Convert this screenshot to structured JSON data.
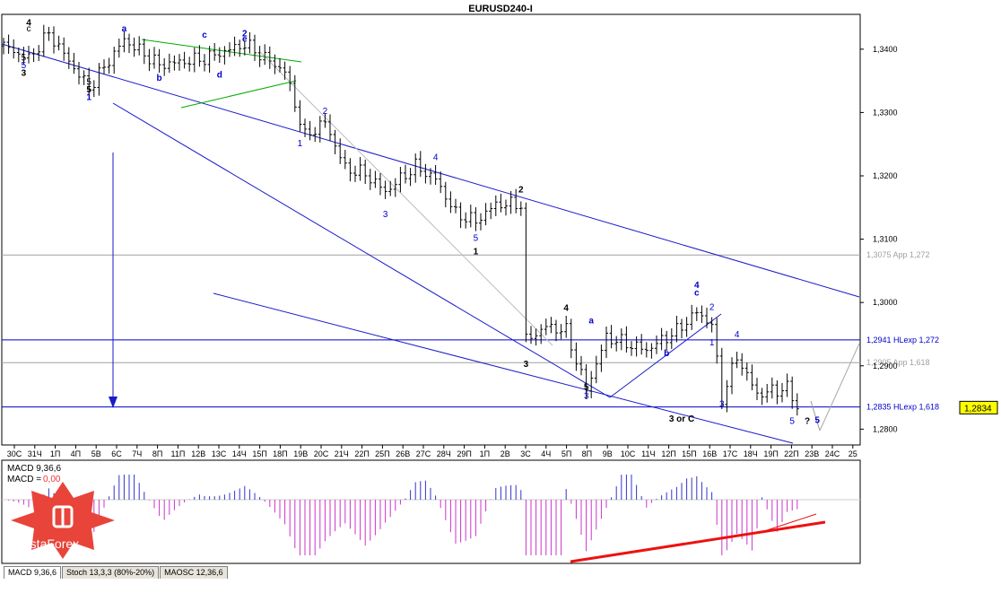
{
  "chart_data": {
    "type": "candlestick",
    "title": "EURUSD240-I",
    "price_axis": {
      "ylim": [
        1.2775,
        1.3455
      ],
      "tick_labels": [
        "1,3400",
        "1,3300",
        "1,3200",
        "1,3100",
        "1,3000",
        "1,2900",
        "1,2800"
      ],
      "tick_values": [
        1.34,
        1.33,
        1.32,
        1.31,
        1.3,
        1.29,
        1.28
      ],
      "current_price_label": "1,2834",
      "current_price": 1.2834
    },
    "time_axis": {
      "tick_labels": [
        "30С",
        "31Ч",
        "1П",
        "4П",
        "5В",
        "6С",
        "7Ч",
        "8П",
        "11П",
        "12В",
        "13С",
        "14Ч",
        "15П",
        "18П",
        "19В",
        "20С",
        "21Ч",
        "22П",
        "25П",
        "26В",
        "27С",
        "28Ч",
        "29П",
        "1П",
        "2В",
        "3С",
        "4Ч",
        "5П",
        "8П",
        "9В",
        "10С",
        "11Ч",
        "12П",
        "15П",
        "16В",
        "17С",
        "18Ч",
        "19П",
        "22П",
        "23В",
        "24С",
        "25"
      ]
    },
    "levels": [
      {
        "name": "app-1272",
        "label": "1,3075 App 1,272",
        "value": 1.3075,
        "color": "#a0a0a0"
      },
      {
        "name": "hlexp-1272",
        "label": "1,2941 HLexp 1,272",
        "value": 1.2941,
        "color": "#0000cc"
      },
      {
        "name": "app-1618",
        "label": "1,2905 App 1,618",
        "value": 1.2905,
        "color": "#a0a0a0"
      },
      {
        "name": "hlexp-1618",
        "label": "1,2835 HLexp 1,618",
        "value": 1.2835,
        "color": "#0000cc"
      }
    ],
    "wave_labels": [
      {
        "text": "4",
        "bar": 5,
        "price": 1.3437,
        "color": "#000",
        "bold": true
      },
      {
        "text": "c",
        "bar": 5,
        "price": 1.3428,
        "color": "#000"
      },
      {
        "text": "a",
        "bar": 24,
        "price": 1.3428,
        "color": "#0000cc",
        "bold": true
      },
      {
        "text": "c",
        "bar": 40,
        "price": 1.3418,
        "color": "#0000cc",
        "bold": true
      },
      {
        "text": "2",
        "bar": 48,
        "price": 1.342,
        "color": "#0000cc",
        "bold": true
      },
      {
        "text": "e",
        "bar": 48,
        "price": 1.3412,
        "color": "#0000cc",
        "bold": true
      },
      {
        "text": "5",
        "bar": 4,
        "price": 1.3382,
        "color": "#000"
      },
      {
        "text": "5",
        "bar": 4,
        "price": 1.337,
        "color": "#0000cc"
      },
      {
        "text": "3",
        "bar": 4,
        "price": 1.3358,
        "color": "#000",
        "bold": true
      },
      {
        "text": "5",
        "bar": 17,
        "price": 1.3344,
        "color": "#000"
      },
      {
        "text": "5",
        "bar": 17,
        "price": 1.3332,
        "color": "#000",
        "bold": true
      },
      {
        "text": "1",
        "bar": 17,
        "price": 1.332,
        "color": "#0000cc",
        "bold": true
      },
      {
        "text": "b",
        "bar": 31,
        "price": 1.335,
        "color": "#0000cc",
        "bold": true
      },
      {
        "text": "d",
        "bar": 43,
        "price": 1.3355,
        "color": "#0000cc",
        "bold": true
      },
      {
        "text": "2",
        "bar": 64,
        "price": 1.3298,
        "color": "#0000cc"
      },
      {
        "text": "1",
        "bar": 59,
        "price": 1.3247,
        "color": "#0000cc"
      },
      {
        "text": "4",
        "bar": 86,
        "price": 1.3225,
        "color": "#0000cc"
      },
      {
        "text": "3",
        "bar": 76,
        "price": 1.3135,
        "color": "#0000cc"
      },
      {
        "text": "5",
        "bar": 94,
        "price": 1.3097,
        "color": "#0000cc"
      },
      {
        "text": "1",
        "bar": 94,
        "price": 1.3076,
        "color": "#000",
        "bold": true
      },
      {
        "text": "2",
        "bar": 103,
        "price": 1.3174,
        "color": "#000",
        "bold": true
      },
      {
        "text": "3",
        "bar": 104,
        "price": 1.2898,
        "color": "#000",
        "bold": true
      },
      {
        "text": "4",
        "bar": 112,
        "price": 1.2987,
        "color": "#000",
        "bold": true
      },
      {
        "text": "5",
        "bar": 116,
        "price": 1.2862,
        "color": "#000",
        "bold": true
      },
      {
        "text": "3",
        "bar": 116,
        "price": 1.2848,
        "color": "#0000cc"
      },
      {
        "text": "a",
        "bar": 117,
        "price": 1.2967,
        "color": "#0000cc",
        "bold": true
      },
      {
        "text": "b",
        "bar": 132,
        "price": 1.2915,
        "color": "#0000cc",
        "bold": true
      },
      {
        "text": "4",
        "bar": 138,
        "price": 1.3023,
        "color": "#0000cc",
        "bold": true
      },
      {
        "text": "c",
        "bar": 138,
        "price": 1.3011,
        "color": "#0000cc",
        "bold": true
      },
      {
        "text": "2",
        "bar": 141,
        "price": 1.2988,
        "color": "#0000cc"
      },
      {
        "text": "1",
        "bar": 141,
        "price": 1.2932,
        "color": "#0000cc"
      },
      {
        "text": "4",
        "bar": 146,
        "price": 1.2945,
        "color": "#0000cc"
      },
      {
        "text": "3",
        "bar": 143,
        "price": 1.2835,
        "color": "#0000cc"
      },
      {
        "text": "3 or C",
        "bar": 135,
        "price": 1.2812,
        "color": "#000",
        "bold": true
      },
      {
        "text": "5",
        "bar": 157,
        "price": 1.2808,
        "color": "#0000cc"
      },
      {
        "text": "?",
        "bar": 160,
        "price": 1.2808,
        "color": "#000",
        "bold": true
      },
      {
        "text": "5",
        "bar": 162,
        "price": 1.281,
        "color": "#0000cc",
        "bold": true
      }
    ],
    "indicator": {
      "label_macd": "MACD 9,36,6",
      "label_signal": "MACD =",
      "signal_value": "0,00"
    }
  },
  "indicator_tabs": [
    {
      "label": "MACD 9,36,6",
      "active": true
    },
    {
      "label": "Stoch 13,3,3 (80%-20%)",
      "active": false
    },
    {
      "label": "MAOSC 12,36,6",
      "active": false
    }
  ],
  "brand": {
    "name": "InstaForex",
    "color": "#e8443a"
  },
  "colors": {
    "channel": "#1a1acc",
    "triangle": "#00aa00",
    "trend": "#ee1111",
    "hist": "#cc33cc",
    "histBlue": "#3333cc"
  }
}
